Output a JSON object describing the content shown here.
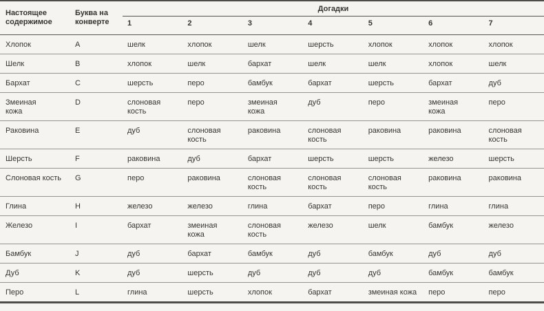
{
  "table": {
    "header": {
      "real_content": "Настоящее\nсодержимое",
      "letter": "Буква на\nконверте",
      "guesses": "Догадки",
      "guess_numbers": [
        "1",
        "2",
        "3",
        "4",
        "5",
        "6",
        "7"
      ]
    },
    "rows": [
      {
        "real": "Хлопок",
        "letter": "A",
        "guesses": [
          "шелк",
          "хлопок",
          "шелк",
          "шерсть",
          "хлопок",
          "хлопок",
          "хлопок"
        ]
      },
      {
        "real": "Шелк",
        "letter": "B",
        "guesses": [
          "хлопок",
          "шелк",
          "бархат",
          "шелк",
          "шелк",
          "хлопок",
          "шелк"
        ]
      },
      {
        "real": "Бархат",
        "letter": "C",
        "guesses": [
          "шерсть",
          "перо",
          "бамбук",
          "бархат",
          "шерсть",
          "бархат",
          "дуб"
        ]
      },
      {
        "real": "Змеиная\nкожа",
        "letter": "D",
        "guesses": [
          "слоновая\nкость",
          "перо",
          "змеиная\nкожа",
          "дуб",
          "перо",
          "змеиная\nкожа",
          "перо"
        ]
      },
      {
        "real": "Раковина",
        "letter": "E",
        "guesses": [
          "дуб",
          "слоновая\nкость",
          "раковина",
          "слоновая\nкость",
          "раковина",
          "раковина",
          "слоновая\nкость"
        ]
      },
      {
        "real": "Шерсть",
        "letter": "F",
        "guesses": [
          "раковина",
          "дуб",
          "бархат",
          "шерсть",
          "шерсть",
          "железо",
          "шерсть"
        ]
      },
      {
        "real": "Слоновая кость",
        "letter": "G",
        "guesses": [
          "перо",
          "раковина",
          "слоновая\nкость",
          "слоновая\nкость",
          "слоновая\nкость",
          "раковина",
          "раковина"
        ]
      },
      {
        "real": "Глина",
        "letter": "H",
        "guesses": [
          "железо",
          "железо",
          "глина",
          "бархат",
          "перо",
          "глина",
          "глина"
        ]
      },
      {
        "real": "Железо",
        "letter": "I",
        "guesses": [
          "бархат",
          "змеиная\nкожа",
          "слоновая\nкость",
          "железо",
          "шелк",
          "бамбук",
          "железо"
        ]
      },
      {
        "real": "Бамбук",
        "letter": "J",
        "guesses": [
          "дуб",
          "бархат",
          "бамбук",
          "дуб",
          "бамбук",
          "дуб",
          "дуб"
        ]
      },
      {
        "real": "Дуб",
        "letter": "K",
        "guesses": [
          "дуб",
          "шерсть",
          "дуб",
          "дуб",
          "дуб",
          "бамбук",
          "бамбук"
        ]
      },
      {
        "real": "Перо",
        "letter": "L",
        "guesses": [
          "глина",
          "шерсть",
          "хлопок",
          "бархат",
          "змеиная кожа",
          "перо",
          "перо"
        ]
      }
    ],
    "colors": {
      "background": "#f5f4f1",
      "text": "#363430",
      "strong_rule": "#4d4c4a",
      "row_rule": "#96948e"
    }
  }
}
